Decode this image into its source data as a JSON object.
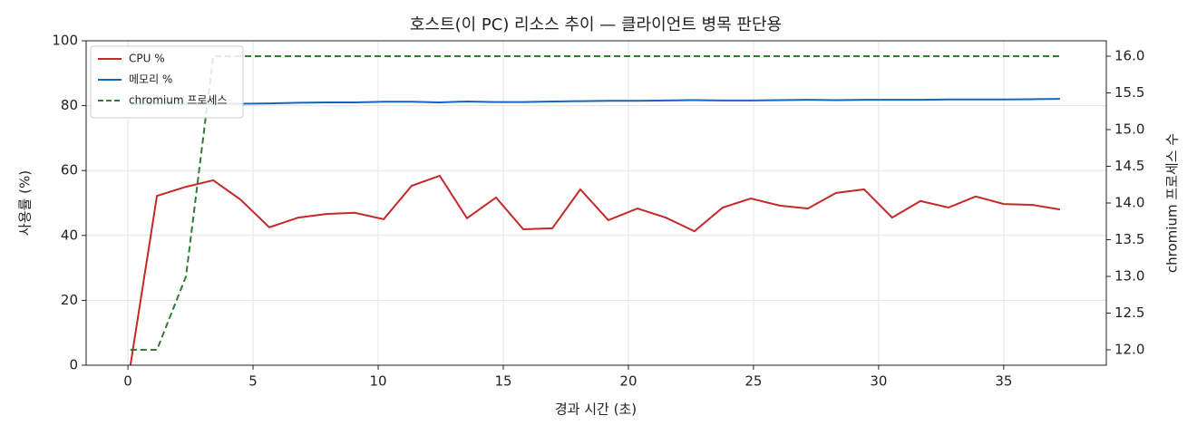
{
  "chart_data": {
    "type": "line",
    "title": "호스트(이 PC) 리소스 추이 — 클라이언트 병목 판단용",
    "x_label": "경과 시간 (초)",
    "y_label": "사용률 (%)",
    "y2_label": "chromium 프로세스 수",
    "x": [
      0.1,
      1.16,
      2.32,
      3.41,
      4.49,
      5.65,
      6.81,
      7.93,
      9.06,
      10.22,
      11.34,
      12.46,
      13.55,
      14.71,
      15.8,
      16.96,
      18.08,
      19.2,
      20.36,
      21.49,
      22.64,
      23.77,
      24.89,
      26.05,
      27.17,
      28.3,
      29.42,
      30.54,
      31.67,
      32.79,
      33.88,
      35.0,
      36.16,
      37.25
    ],
    "series": [
      {
        "name": "CPU %",
        "color": "#c62828",
        "linestyle": "solid",
        "values": [
          0,
          52.2,
          55.0,
          57.0,
          51.1,
          42.5,
          45.5,
          46.6,
          47.0,
          45.0,
          55.3,
          58.4,
          45.3,
          51.7,
          41.9,
          42.2,
          54.2,
          44.7,
          48.3,
          45.5,
          41.3,
          48.6,
          51.4,
          49.2,
          48.3,
          53.1,
          54.2,
          45.5,
          50.6,
          48.6,
          52.0,
          49.7,
          49.4,
          48.0
        ]
      },
      {
        "name": "메모리 %",
        "color": "#1565c0",
        "linestyle": "solid",
        "values": [
          80.5,
          80.6,
          80.6,
          80.6,
          80.6,
          80.7,
          80.9,
          81.0,
          81.0,
          81.2,
          81.2,
          81.0,
          81.3,
          81.1,
          81.1,
          81.3,
          81.4,
          81.5,
          81.5,
          81.6,
          81.7,
          81.6,
          81.6,
          81.7,
          81.8,
          81.7,
          81.8,
          81.8,
          81.8,
          81.9,
          81.9,
          81.9,
          82.0,
          82.1
        ]
      },
      {
        "name": "chromium 프로세스",
        "color": "#2e7d32",
        "linestyle": "dashed",
        "axis": "y2",
        "values": [
          12,
          12,
          13,
          16,
          16,
          16,
          16,
          16,
          16,
          16,
          16,
          16,
          16,
          16,
          16,
          16,
          16,
          16,
          16,
          16,
          16,
          16,
          16,
          16,
          16,
          16,
          16,
          16,
          16,
          16,
          16,
          16,
          16,
          16
        ]
      }
    ],
    "xlim": [
      -1.67,
      39.1
    ],
    "xticks": [
      0,
      5,
      10,
      15,
      20,
      25,
      30,
      35
    ],
    "ylim": [
      0,
      100
    ],
    "yticks": [
      0,
      20,
      40,
      60,
      80,
      100
    ],
    "y2lim": [
      11.79,
      16.21
    ],
    "y2ticks": [
      {
        "value": 12,
        "label": "12.0"
      },
      12.5,
      {
        "value": 13,
        "label": "13.0"
      },
      13.5,
      {
        "value": 14,
        "label": "14.0"
      },
      14.5,
      {
        "value": 15,
        "label": "15.0"
      },
      15.5,
      {
        "value": 16,
        "label": "16.0"
      }
    ],
    "grid": true,
    "legend": "upper left"
  }
}
